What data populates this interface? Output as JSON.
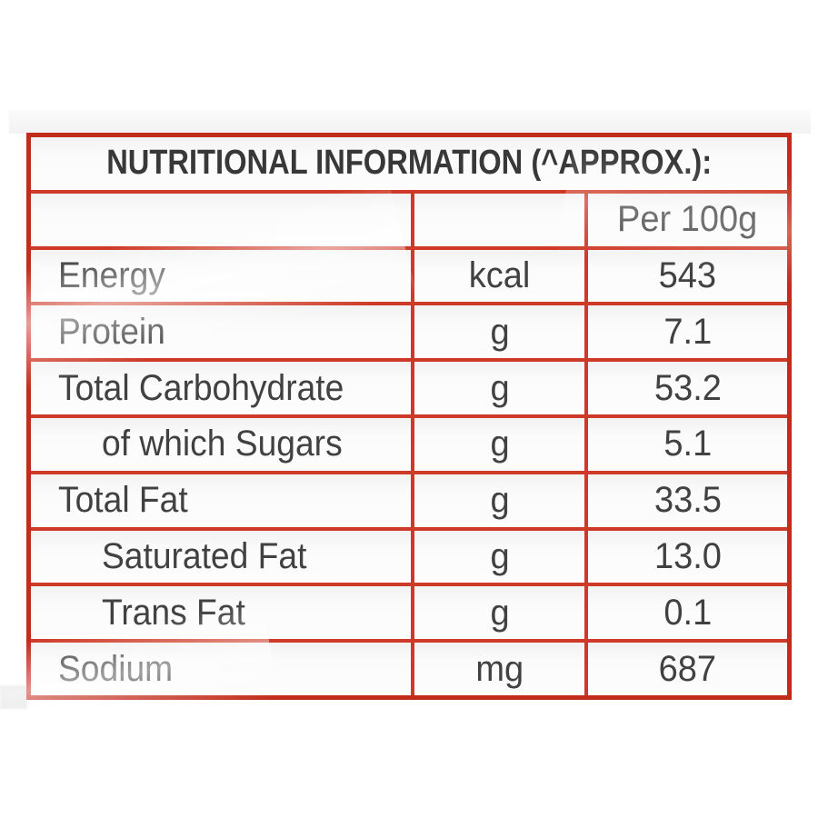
{
  "table": {
    "title": "NUTRITIONAL INFORMATION (^APPROX.):",
    "per_100g_header": "Per 100g",
    "rows": [
      {
        "label": "Energy",
        "unit": "kcal",
        "value": "543",
        "indent": false
      },
      {
        "label": "Protein",
        "unit": "g",
        "value": "7.1",
        "indent": false
      },
      {
        "label": "Total Carbohydrate",
        "unit": "g",
        "value": "53.2",
        "indent": false
      },
      {
        "label": "of which Sugars",
        "unit": "g",
        "value": "5.1",
        "indent": true
      },
      {
        "label": "Total Fat",
        "unit": "g",
        "value": "33.5",
        "indent": false
      },
      {
        "label": "Saturated Fat",
        "unit": "g",
        "value": "13.0",
        "indent": true
      },
      {
        "label": "Trans Fat",
        "unit": "g",
        "value": "0.1",
        "indent": true
      },
      {
        "label": "Sodium",
        "unit": "mg",
        "value": "687",
        "indent": false
      }
    ],
    "colors": {
      "grid_border": "#ce3a27",
      "outer_border": "#c22d1b",
      "text": "#414141",
      "cell_background": "#fbfbfb"
    }
  }
}
